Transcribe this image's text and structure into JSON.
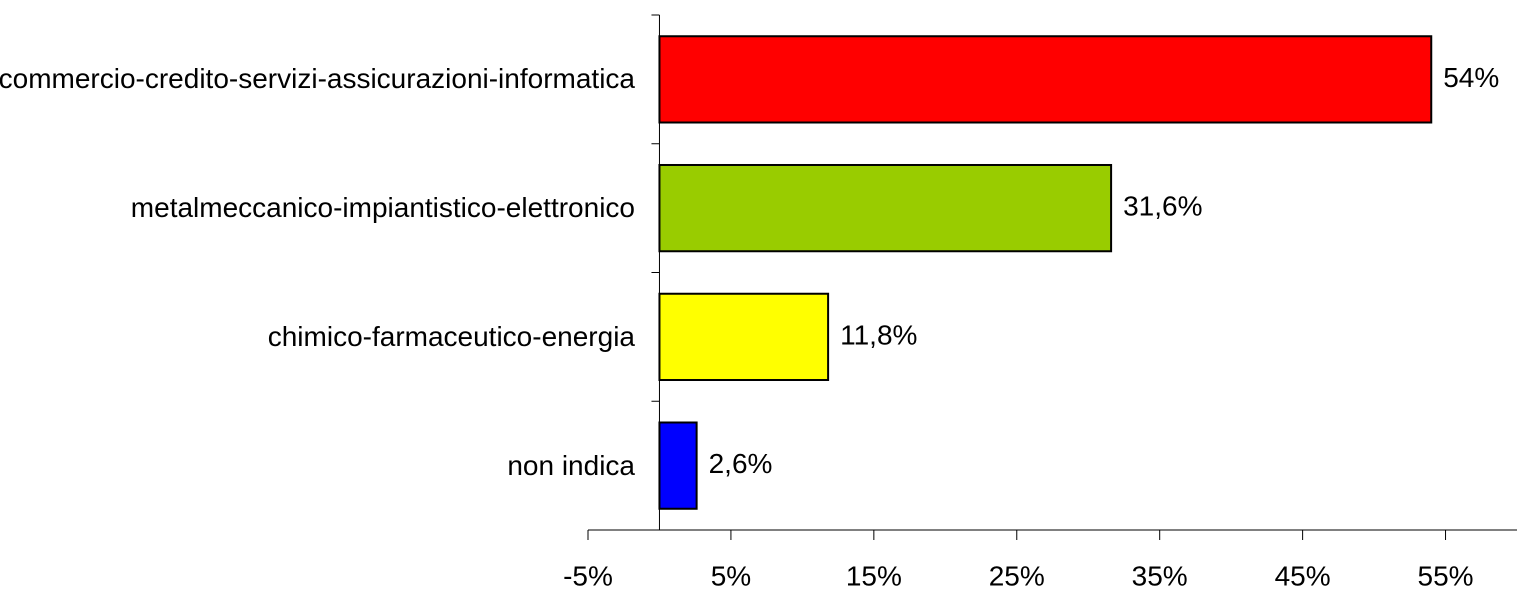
{
  "chart_data": {
    "type": "bar",
    "orientation": "horizontal",
    "categories": [
      "commercio-credito-servizi-assicurazioni-informatica",
      "metalmeccanico-impiantistico-elettronico",
      "chimico-farmaceutico-energia",
      "non indica"
    ],
    "values": [
      54,
      31.6,
      11.8,
      2.6
    ],
    "value_labels": [
      "54%",
      "31,6%",
      "11,8%",
      "2,6%"
    ],
    "colors": [
      "#ff0000",
      "#99cc00",
      "#ffff00",
      "#0000ff"
    ],
    "xlim": [
      -5,
      60
    ],
    "xticks": [
      {
        "value": -5,
        "label": "-5%"
      },
      {
        "value": 5,
        "label": "5%"
      },
      {
        "value": 15,
        "label": "15%"
      },
      {
        "value": 25,
        "label": "25%"
      },
      {
        "value": 35,
        "label": "35%"
      },
      {
        "value": 45,
        "label": "45%"
      },
      {
        "value": 55,
        "label": "55%"
      }
    ],
    "grid": false
  }
}
